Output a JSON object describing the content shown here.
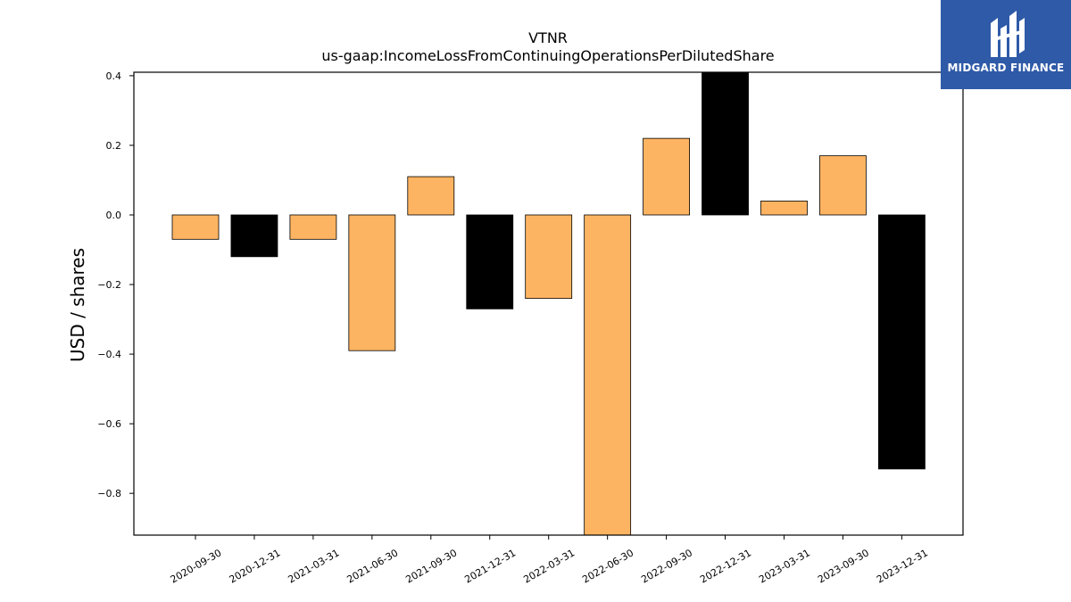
{
  "logo": {
    "text": "MIDGARD FINANCE",
    "background": "#2f5aa8"
  },
  "chart_data": {
    "type": "bar",
    "title": "VTNR",
    "subtitle": "us-gaap:IncomeLossFromContinuingOperationsPerDilutedShare",
    "xlabel": "",
    "ylabel": "USD / shares",
    "ylim": [
      -0.92,
      0.41
    ],
    "yticks": [
      0.4,
      0.2,
      0.0,
      -0.2,
      -0.4,
      -0.6,
      -0.8
    ],
    "ytick_labels": [
      "0.4",
      "0.2",
      "0.0",
      "−0.2",
      "−0.4",
      "−0.6",
      "−0.8"
    ],
    "categories": [
      "2020-09-30",
      "2020-12-31",
      "2021-03-31",
      "2021-06-30",
      "2021-09-30",
      "2021-12-31",
      "2022-03-31",
      "2022-06-30",
      "2022-09-30",
      "2022-12-31",
      "2023-03-31",
      "2023-09-30",
      "2023-12-31"
    ],
    "values": [
      -0.07,
      -0.12,
      -0.07,
      -0.39,
      0.11,
      -0.27,
      -0.24,
      -0.95,
      0.22,
      0.42,
      0.04,
      0.17,
      -0.73
    ],
    "bar_colors": [
      "#fdb462",
      "#000000",
      "#fdb462",
      "#fdb462",
      "#fdb462",
      "#000000",
      "#fdb462",
      "#fdb462",
      "#fdb462",
      "#000000",
      "#fdb462",
      "#fdb462",
      "#000000"
    ],
    "grid": false
  }
}
